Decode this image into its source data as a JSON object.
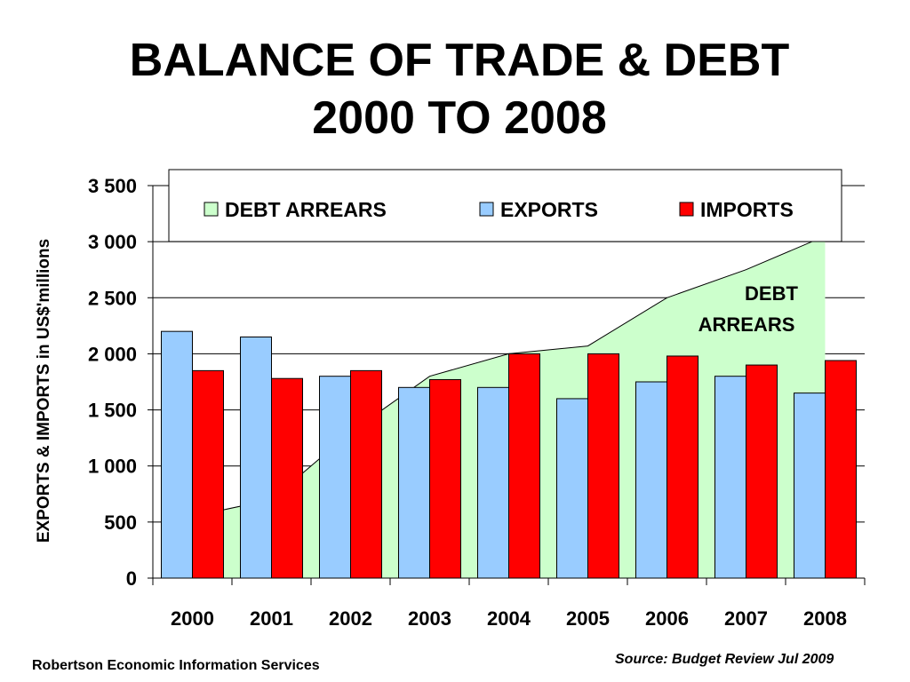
{
  "title_line1": "BALANCE OF TRADE & DEBT",
  "title_line2": "2000 TO 2008",
  "footer_left": "Robertson Economic Information Services",
  "footer_right": "Source: Budget Review Jul 2009",
  "colors": {
    "debt_fill": "#ccffcc",
    "exports": "#99ccff",
    "imports": "#ff0000"
  },
  "chart_data": {
    "type": "bar",
    "title": "BALANCE OF TRADE & DEBT 2000 TO 2008",
    "ylabel": "EXPORTS & IMPORTS in US$'millions",
    "xlabel": "",
    "ylim": [
      0,
      3500
    ],
    "yticks": [
      0,
      500,
      1000,
      1500,
      2000,
      2500,
      3000,
      3500
    ],
    "ytick_labels": [
      "0",
      "500",
      "1 000",
      "1 500",
      "2 000",
      "2 500",
      "3 000",
      "3 500"
    ],
    "categories": [
      "2000",
      "2001",
      "2002",
      "2003",
      "2004",
      "2005",
      "2006",
      "2007",
      "2008"
    ],
    "grid": true,
    "legend_position": "top",
    "series": [
      {
        "name": "DEBT ARREARS",
        "type": "area",
        "values": [
          550,
          700,
          1300,
          1800,
          2000,
          2070,
          2500,
          2750,
          3050
        ]
      },
      {
        "name": "EXPORTS",
        "type": "bar",
        "values": [
          2200,
          2150,
          1800,
          1700,
          1700,
          1600,
          1750,
          1800,
          1650
        ]
      },
      {
        "name": "IMPORTS",
        "type": "bar",
        "values": [
          1850,
          1780,
          1850,
          1770,
          2000,
          2000,
          1980,
          1900,
          1940
        ]
      }
    ],
    "annotation": "DEBT ARREARS"
  }
}
